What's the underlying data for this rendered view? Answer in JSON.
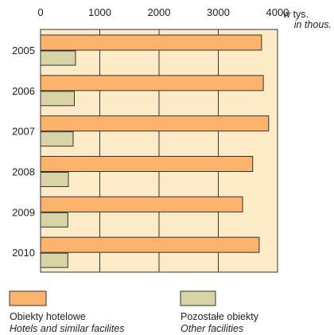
{
  "chart_data": {
    "type": "bar",
    "orientation": "horizontal",
    "categories": [
      "2005",
      "2006",
      "2007",
      "2008",
      "2009",
      "2010"
    ],
    "series": [
      {
        "name": "Obiekty hotelowe",
        "name_en": "Hotels and similar facilites",
        "color": "#fbb36b",
        "values": [
          3730,
          3760,
          3850,
          3580,
          3410,
          3690
        ]
      },
      {
        "name": "Pozostałe obiekty",
        "name_en": "Other facilities",
        "color": "#d8d4a6",
        "values": [
          590,
          570,
          550,
          470,
          460,
          460
        ]
      }
    ],
    "x_ticks": [
      "0",
      "1000",
      "2000",
      "3000",
      "4000"
    ],
    "xlim": [
      0,
      4000
    ],
    "unit_pl": "w tys.",
    "unit_en": "in thous.",
    "grid": true,
    "legend_position": "bottom",
    "plot_background": "#fdebc8"
  }
}
